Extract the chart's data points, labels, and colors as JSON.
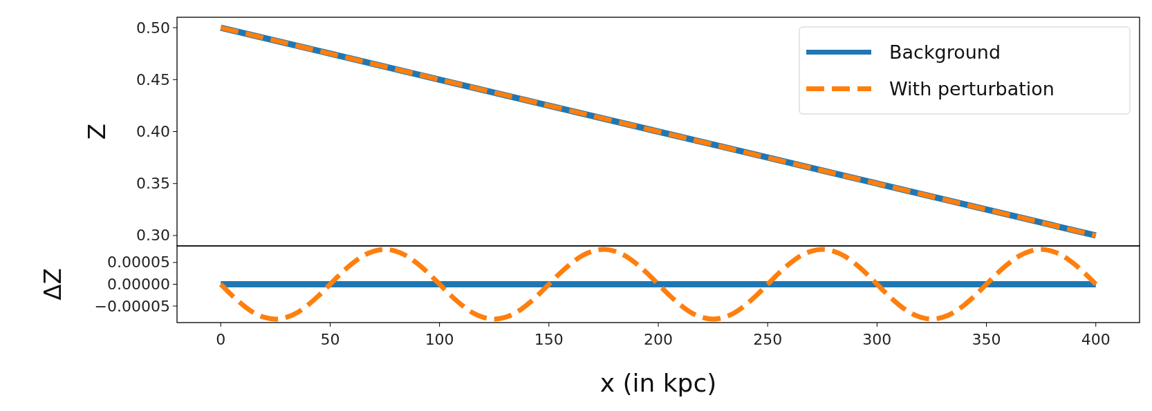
{
  "chart_data": [
    {
      "type": "line",
      "ylabel": "Z",
      "xlim": [
        -20,
        420
      ],
      "ylim": [
        0.29,
        0.51
      ],
      "yticks": [
        {
          "value": 0.3,
          "label": "0.30"
        },
        {
          "value": 0.35,
          "label": "0.35"
        },
        {
          "value": 0.4,
          "label": "0.40"
        },
        {
          "value": 0.45,
          "label": "0.45"
        },
        {
          "value": 0.5,
          "label": "0.50"
        }
      ],
      "tick_labels": "y",
      "legend": "top right",
      "series": [
        {
          "name": "Background",
          "color": "#1f77b4",
          "x": [
            0,
            100,
            200,
            300,
            400
          ],
          "values": [
            0.5,
            0.45,
            0.4,
            0.35,
            0.3
          ],
          "line_style": "solid"
        },
        {
          "name": "With perturbation",
          "color": "#ff7f0e",
          "x": [
            0,
            100,
            200,
            300,
            400
          ],
          "values": [
            0.5,
            0.45,
            0.4,
            0.35,
            0.3
          ],
          "line_style": "dashed"
        }
      ]
    },
    {
      "type": "line",
      "ylabel": "ΔZ",
      "xlabel": "x (in kpc)",
      "xlim": [
        -20,
        420
      ],
      "ylim": [
        -8.8e-05,
        8.8e-05
      ],
      "xticks": [
        0,
        50,
        100,
        150,
        200,
        250,
        300,
        350,
        400
      ],
      "yticks": [
        {
          "value": -5e-05,
          "label": "−0.00005"
        },
        {
          "value": 0,
          "label": "0.00000"
        },
        {
          "value": 5e-05,
          "label": "0.00005"
        }
      ],
      "series": [
        {
          "color": "#1f77b4",
          "x": [
            0,
            400
          ],
          "values": [
            0,
            0
          ],
          "line_style": "solid"
        },
        {
          "color": "#ff7f0e",
          "x": [
            0,
            5,
            10,
            15,
            20,
            25,
            30,
            35,
            40,
            45,
            50,
            55,
            60,
            65,
            70,
            75,
            80,
            85,
            90,
            95,
            100,
            105,
            110,
            115,
            120,
            125,
            130,
            135,
            140,
            145,
            150,
            155,
            160,
            165,
            170,
            175,
            180,
            185,
            190,
            195,
            200,
            205,
            210,
            215,
            220,
            225,
            230,
            235,
            240,
            245,
            250,
            255,
            260,
            265,
            270,
            275,
            280,
            285,
            290,
            295,
            300,
            305,
            310,
            315,
            320,
            325,
            330,
            335,
            340,
            345,
            350,
            355,
            360,
            365,
            370,
            375,
            380,
            385,
            390,
            395,
            400
          ],
          "values": [
            0,
            -2.5e-05,
            -4.7e-05,
            -6.5e-05,
            -7.6e-05,
            -8e-05,
            -7.6e-05,
            -6.5e-05,
            -4.7e-05,
            -2.5e-05,
            0,
            2.5e-05,
            4.7e-05,
            6.5e-05,
            7.6e-05,
            8e-05,
            7.6e-05,
            6.5e-05,
            4.7e-05,
            2.5e-05,
            0,
            -2.5e-05,
            -4.7e-05,
            -6.5e-05,
            -7.6e-05,
            -8e-05,
            -7.6e-05,
            -6.5e-05,
            -4.7e-05,
            -2.5e-05,
            0,
            2.5e-05,
            4.7e-05,
            6.5e-05,
            7.6e-05,
            8e-05,
            7.6e-05,
            6.5e-05,
            4.7e-05,
            2.5e-05,
            0,
            -2.5e-05,
            -4.7e-05,
            -6.5e-05,
            -7.6e-05,
            -8e-05,
            -7.6e-05,
            -6.5e-05,
            -4.7e-05,
            -2.5e-05,
            0,
            2.5e-05,
            4.7e-05,
            6.5e-05,
            7.6e-05,
            8e-05,
            7.6e-05,
            6.5e-05,
            4.7e-05,
            2.5e-05,
            0,
            -2.5e-05,
            -4.7e-05,
            -6.5e-05,
            -7.6e-05,
            -8e-05,
            -7.6e-05,
            -6.5e-05,
            -4.7e-05,
            -2.5e-05,
            0,
            2.5e-05,
            4.7e-05,
            6.5e-05,
            7.6e-05,
            8e-05,
            7.6e-05,
            6.5e-05,
            4.7e-05,
            2.5e-05,
            0
          ],
          "line_style": "dashed"
        }
      ]
    }
  ]
}
